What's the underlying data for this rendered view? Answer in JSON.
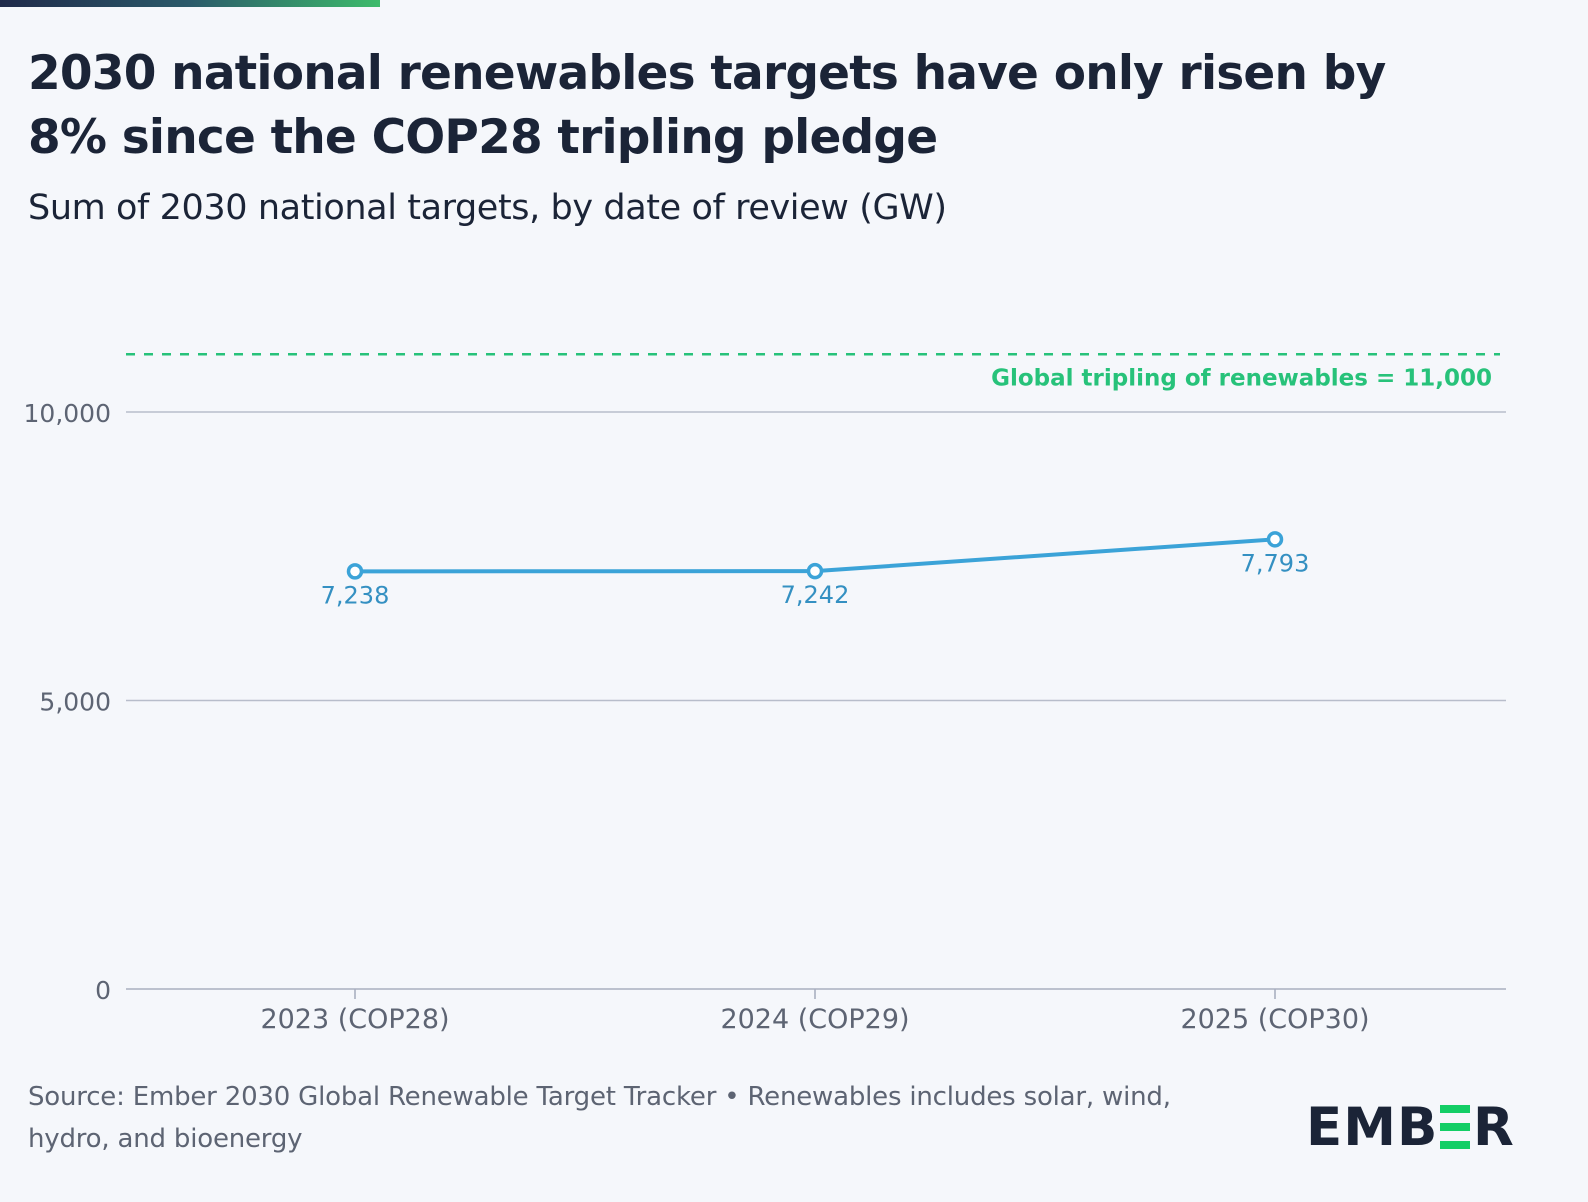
{
  "header": {
    "title": "2030 national renewables targets have only risen by 8% since the COP28 tripling pledge",
    "subtitle": "Sum of 2030 national targets, by date of review (GW)"
  },
  "footer": {
    "source": "Source: Ember 2030 Global Renewable Target Tracker • Renewables includes solar, wind, hydro, and bioenergy"
  },
  "logo": {
    "text": "EMBER",
    "accent_color": "#13ce66",
    "text_color": "#1b2437"
  },
  "chart_data": {
    "type": "line",
    "title": "2030 national renewables targets have only risen by 8% since the COP28 tripling pledge",
    "subtitle": "Sum of 2030 national targets, by date of review (GW)",
    "categories": [
      "2023 (COP28)",
      "2024 (COP29)",
      "2025 (COP30)"
    ],
    "series": [
      {
        "values": [
          7238,
          7242,
          7793
        ],
        "data_labels": [
          "7,238",
          "7,242",
          "7,793"
        ],
        "color": "#3ba3d8"
      }
    ],
    "reference_line": {
      "value": 11000,
      "label": "Global tripling of renewables = 11,000",
      "color": "#27c27a",
      "style": "dashed"
    },
    "y_ticks": [
      0,
      5000,
      10000
    ],
    "y_tick_labels": [
      "0",
      "5,000",
      "10,000"
    ],
    "ylim": [
      0,
      11000
    ],
    "grid": true,
    "xlabel": "",
    "ylabel": ""
  }
}
